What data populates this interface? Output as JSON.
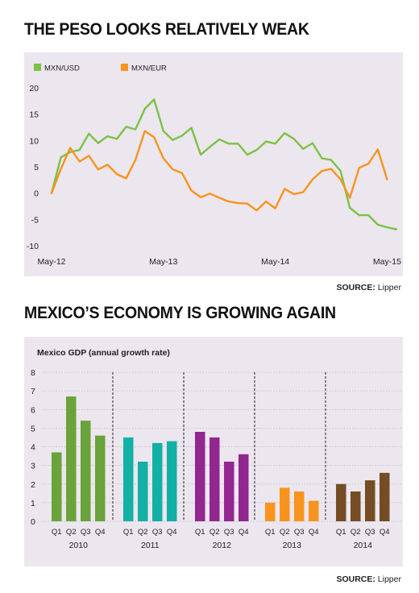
{
  "sections": [
    {
      "title": "THE PESO LOOKS RELATIVELY WEAK",
      "source_label": "SOURCE:",
      "source_value": "Lipper"
    },
    {
      "title": "MEXICO’S ECONOMY IS GROWING AGAIN",
      "source_label": "SOURCE:",
      "source_value": "Lipper"
    }
  ],
  "chart_data": [
    {
      "type": "line",
      "title": "THE PESO LOOKS RELATIVELY WEAK",
      "x": [
        "May-12",
        "Jun-12",
        "Jul-12",
        "Aug-12",
        "Sep-12",
        "Oct-12",
        "Nov-12",
        "Dec-12",
        "Jan-13",
        "Feb-13",
        "Mar-13",
        "Apr-13",
        "May-13",
        "Jun-13",
        "Jul-13",
        "Aug-13",
        "Sep-13",
        "Oct-13",
        "Nov-13",
        "Dec-13",
        "Jan-14",
        "Feb-14",
        "Mar-14",
        "Apr-14",
        "May-14",
        "Jun-14",
        "Jul-14",
        "Aug-14",
        "Sep-14",
        "Oct-14",
        "Nov-14",
        "Dec-14",
        "Jan-15",
        "Feb-15",
        "Mar-15",
        "Apr-15",
        "May-15",
        "Jun-15"
      ],
      "x_tick_labels": [
        "May-12",
        "May-13",
        "May-14",
        "May-15"
      ],
      "x_tick_index": [
        0,
        12,
        24,
        36
      ],
      "series": [
        {
          "name": "MXN/USD",
          "color": "#7cc242",
          "values": [
            0,
            6.8,
            7.8,
            8.2,
            11.3,
            9.5,
            10.8,
            10.3,
            12.6,
            12.1,
            16.0,
            17.8,
            11.8,
            10.1,
            10.9,
            12.4,
            7.3,
            8.8,
            10.2,
            9.4,
            9.4,
            7.3,
            8.2,
            9.8,
            9.4,
            11.4,
            10.3,
            8.4,
            9.5,
            6.6,
            6.3,
            4.2,
            -2.8,
            -4.2,
            -4.2,
            -6.0,
            -6.5,
            -6.9
          ]
        },
        {
          "name": "MXN/EUR",
          "color": "#f7941d",
          "values": [
            0,
            4.6,
            8.6,
            6.0,
            7.1,
            4.5,
            5.4,
            3.6,
            2.8,
            6.3,
            11.8,
            10.6,
            6.6,
            4.5,
            3.8,
            0.5,
            -0.8,
            -0.1,
            -0.9,
            -1.6,
            -1.9,
            -2.0,
            -3.3,
            -1.6,
            -2.9,
            0.8,
            -0.2,
            0.2,
            2.6,
            4.2,
            4.6,
            2.6,
            -0.9,
            4.8,
            5.6,
            8.3,
            2.6,
            null
          ]
        }
      ],
      "ylim": [
        -10,
        20
      ],
      "y_ticks": [
        -10,
        -5,
        0,
        5,
        10,
        15,
        20
      ],
      "legend": "top-left",
      "grid": false
    },
    {
      "type": "bar",
      "title": "MEXICO’S ECONOMY IS GROWING AGAIN",
      "ylabel": "Mexico GDP (annual growth rate)",
      "ylim": [
        0,
        8
      ],
      "y_ticks": [
        0,
        1,
        2,
        3,
        4,
        5,
        6,
        7,
        8
      ],
      "quarters": [
        "Q1",
        "Q2",
        "Q3",
        "Q4"
      ],
      "groups": [
        {
          "year": "2010",
          "color": "#6aa33a",
          "values": [
            3.7,
            6.7,
            5.4,
            4.6
          ]
        },
        {
          "year": "2011",
          "color": "#12b0a5",
          "values": [
            4.5,
            3.2,
            4.2,
            4.3
          ]
        },
        {
          "year": "2012",
          "color": "#92278f",
          "values": [
            4.8,
            4.5,
            3.2,
            3.6
          ]
        },
        {
          "year": "2013",
          "color": "#f7941d",
          "values": [
            1.0,
            1.8,
            1.6,
            1.1
          ]
        },
        {
          "year": "2014",
          "color": "#754c24",
          "values": [
            2.0,
            1.6,
            2.2,
            2.6
          ]
        }
      ],
      "grid": true
    }
  ]
}
